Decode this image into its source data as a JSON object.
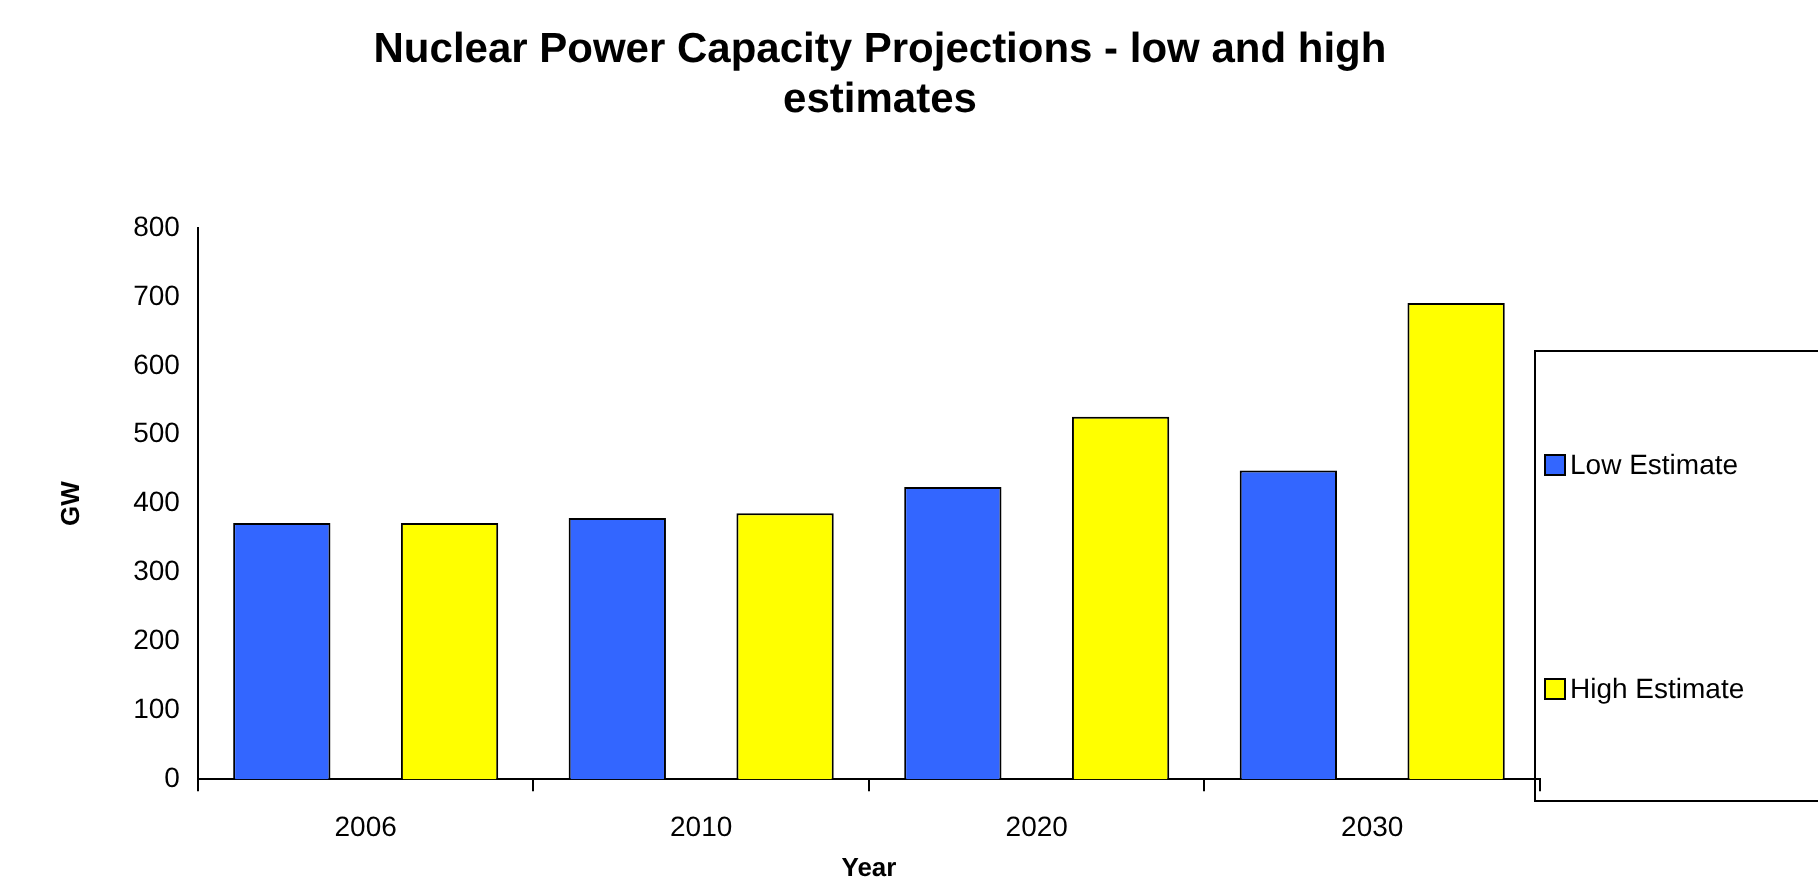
{
  "chart_data": {
    "type": "bar",
    "title": "Nuclear Power Capacity Projections - low and high estimates",
    "xlabel": "Year",
    "ylabel": "GW",
    "categories": [
      "2006",
      "2010",
      "2020",
      "2030"
    ],
    "series": [
      {
        "name": "Low Estimate",
        "color": "#3366ff",
        "values": [
          372,
          379,
          424,
          448
        ]
      },
      {
        "name": "High Estimate",
        "color": "#ffff00",
        "values": [
          372,
          386,
          526,
          691
        ]
      }
    ],
    "ylim": [
      0,
      800
    ],
    "yticks": [
      0,
      100,
      200,
      300,
      400,
      500,
      600,
      700,
      800
    ],
    "grid": false,
    "legend": "right"
  }
}
